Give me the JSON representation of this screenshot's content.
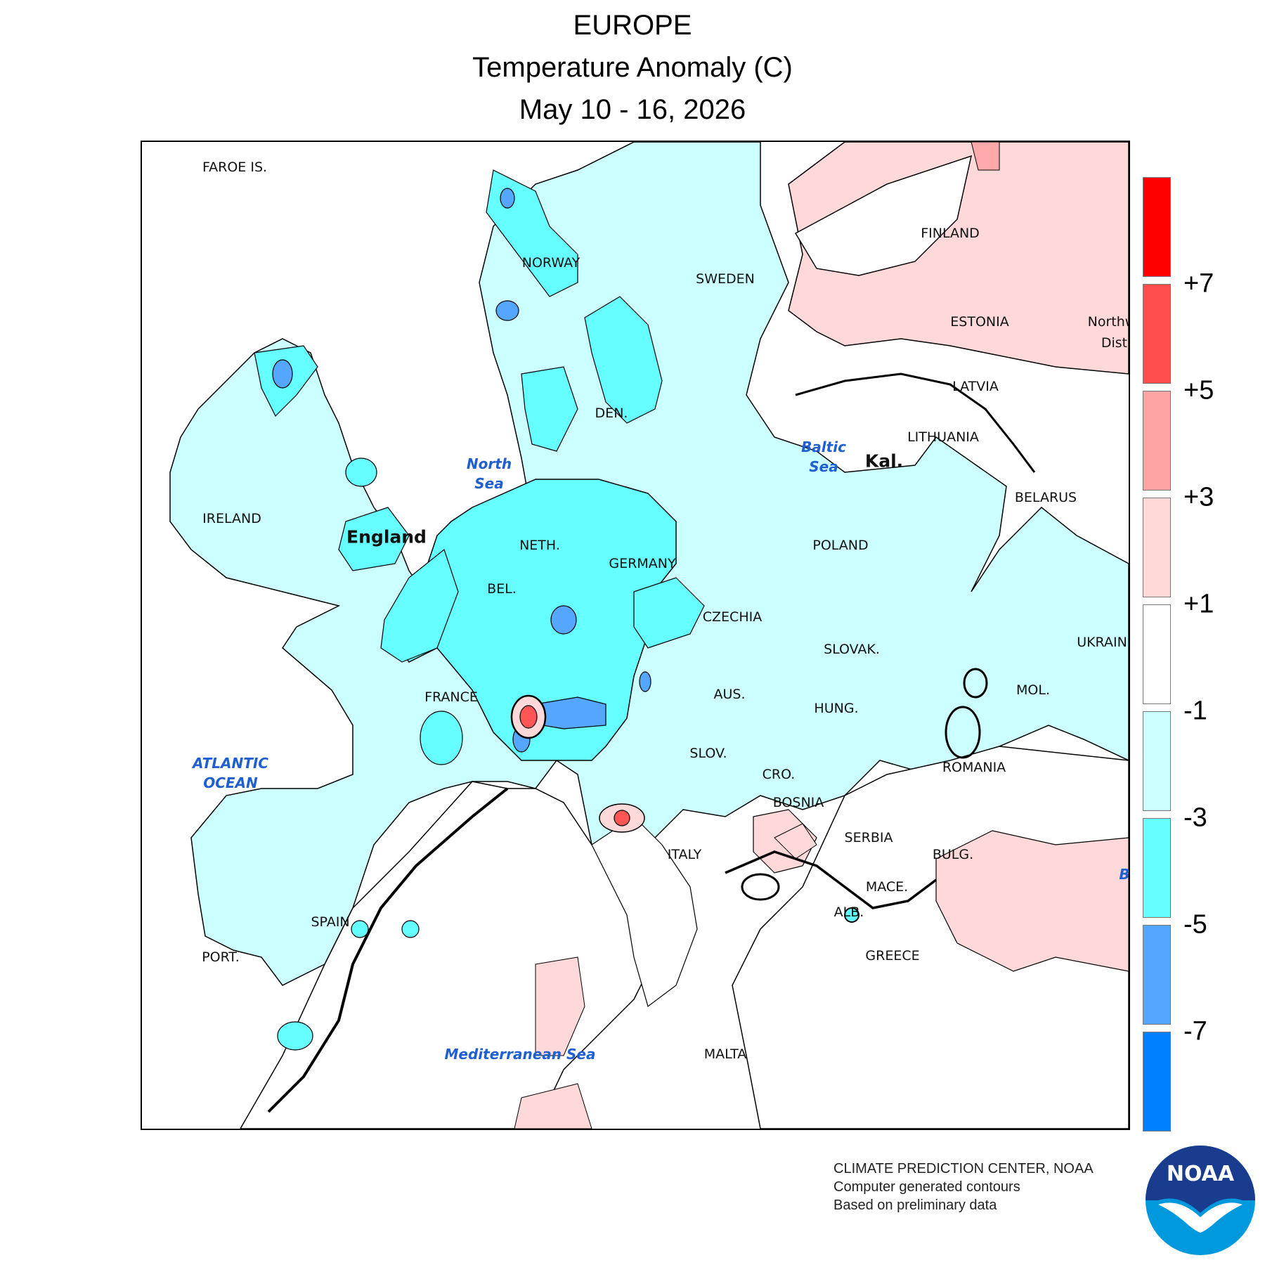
{
  "title": {
    "line1": "EUROPE",
    "line2": "Temperature Anomaly (C)",
    "line3": "May 10 - 16, 2026"
  },
  "map": {
    "region_labels": [
      {
        "id": "faroe",
        "text": "FAROE IS."
      },
      {
        "id": "norway",
        "text": "NORWAY"
      },
      {
        "id": "sweden",
        "text": "SWEDEN"
      },
      {
        "id": "finland",
        "text": "FINLAND"
      },
      {
        "id": "estonia",
        "text": "ESTONIA"
      },
      {
        "id": "latvia",
        "text": "LATVIA"
      },
      {
        "id": "lithuania",
        "text": "LITHUANIA"
      },
      {
        "id": "kal",
        "text": "Kal."
      },
      {
        "id": "belarus",
        "text": "BELARUS"
      },
      {
        "id": "den",
        "text": "DEN."
      },
      {
        "id": "ireland",
        "text": "IRELAND"
      },
      {
        "id": "england",
        "text": "England"
      },
      {
        "id": "neth",
        "text": "NETH."
      },
      {
        "id": "germany",
        "text": "GERMANY"
      },
      {
        "id": "poland",
        "text": "POLAND"
      },
      {
        "id": "bel",
        "text": "BEL."
      },
      {
        "id": "czechia",
        "text": "CZECHIA"
      },
      {
        "id": "slovak",
        "text": "SLOVAK."
      },
      {
        "id": "ukraine",
        "text": "UKRAINE"
      },
      {
        "id": "france",
        "text": "FRANCE"
      },
      {
        "id": "aus",
        "text": "AUS."
      },
      {
        "id": "hung",
        "text": "HUNG."
      },
      {
        "id": "mol",
        "text": "MOL."
      },
      {
        "id": "slov",
        "text": "SLOV."
      },
      {
        "id": "cro",
        "text": "CRO."
      },
      {
        "id": "romania",
        "text": "ROMANIA"
      },
      {
        "id": "bosnia",
        "text": "BOSNIA"
      },
      {
        "id": "serbia",
        "text": "SERBIA"
      },
      {
        "id": "italy",
        "text": "ITALY"
      },
      {
        "id": "bulg",
        "text": "BULG."
      },
      {
        "id": "mace",
        "text": "MACE."
      },
      {
        "id": "alb",
        "text": "ALB."
      },
      {
        "id": "greece",
        "text": "GREECE"
      },
      {
        "id": "spain",
        "text": "SPAIN"
      },
      {
        "id": "port",
        "text": "PORT."
      },
      {
        "id": "malta",
        "text": "MALTA"
      },
      {
        "id": "northwest",
        "text": "Northw"
      },
      {
        "id": "district",
        "text": "Distri"
      },
      {
        "id": "black_b",
        "text": "B"
      }
    ],
    "sea_labels": [
      {
        "id": "north_sea",
        "text": "North\nSea"
      },
      {
        "id": "baltic_sea",
        "text": "Baltic\nSea"
      },
      {
        "id": "atlantic",
        "text": "ATLANTIC\nOCEAN"
      },
      {
        "id": "med",
        "text": "Mediterranean Sea"
      }
    ],
    "anomaly_colors": {
      "near_normal": "#ffffff",
      "minus1_to_minus3": "#ccffff",
      "minus3_to_minus5": "#66ffff",
      "minus5_to_minus7": "#55a6ff",
      "below_minus7": "#0080ff",
      "plus1_to_plus3": "#ffd9d9",
      "plus3_to_plus5": "#ffaaaa",
      "plus5_to_plus7": "#ff5555",
      "above_plus7": "#ff0000"
    }
  },
  "legend": {
    "boxes": [
      "#ff0000",
      "#ff4c4c",
      "#ffa4a4",
      "#ffd8d8",
      "#ffffff",
      "#ccffff",
      "#66ffff",
      "#55a6ff",
      "#0080ff"
    ],
    "ticks": [
      "+7",
      "+5",
      "+3",
      "+1",
      "-1",
      "-3",
      "-5",
      "-7"
    ]
  },
  "credits": {
    "line1": "CLIMATE PREDICTION CENTER, NOAA",
    "line2": "Computer generated contours",
    "line3": "Based on preliminary data"
  },
  "logo": {
    "text": "NOAA",
    "colors": {
      "navy": "#1a3c8f",
      "sky": "#0099dd"
    }
  }
}
